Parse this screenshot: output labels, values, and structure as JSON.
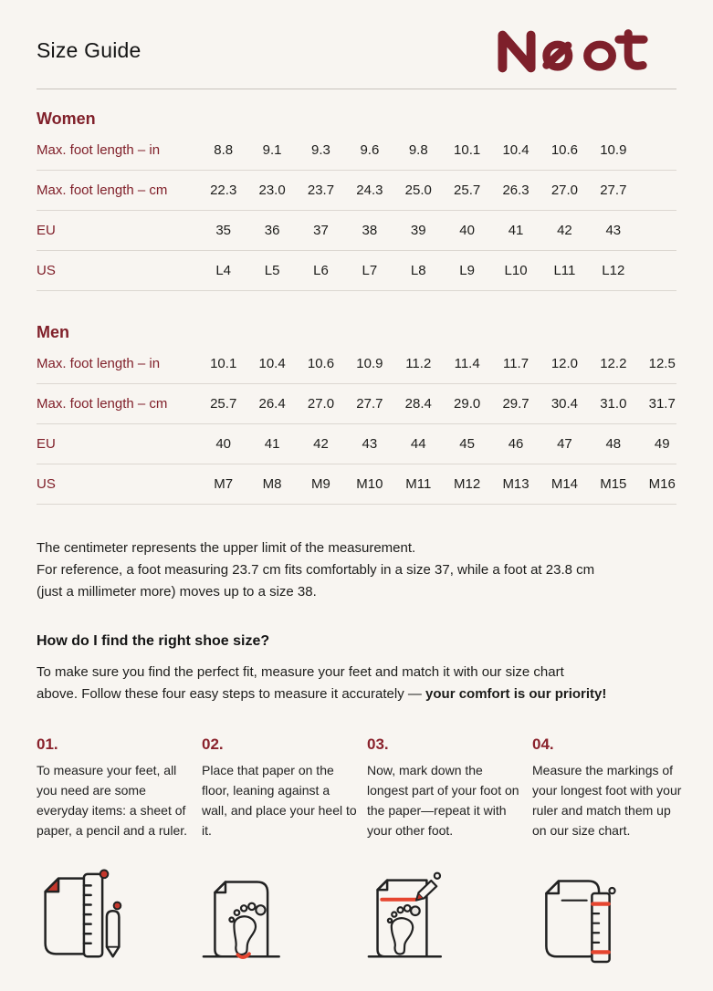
{
  "page": {
    "title": "Size Guide",
    "brand": "Naot"
  },
  "colors": {
    "background": "#F8F5F1",
    "accent_dark_red": "#80202A",
    "logo_red": "#7E202B",
    "icon_red_dark": "#C4372C",
    "icon_red_bright": "#E6452F",
    "text": "#1D1D1B",
    "divider": "#DCD7D1"
  },
  "women": {
    "heading": "Women",
    "rows": [
      {
        "label": "Max. foot length – in",
        "values": [
          "8.8",
          "9.1",
          "9.3",
          "9.6",
          "9.8",
          "10.1",
          "10.4",
          "10.6",
          "10.9"
        ]
      },
      {
        "label": "Max. foot length – cm",
        "values": [
          "22.3",
          "23.0",
          "23.7",
          "24.3",
          "25.0",
          "25.7",
          "26.3",
          "27.0",
          "27.7"
        ]
      },
      {
        "label": "EU",
        "values": [
          "35",
          "36",
          "37",
          "38",
          "39",
          "40",
          "41",
          "42",
          "43"
        ]
      },
      {
        "label": "US",
        "values": [
          "L4",
          "L5",
          "L6",
          "L7",
          "L8",
          "L9",
          "L10",
          "L11",
          "L12"
        ]
      }
    ]
  },
  "men": {
    "heading": "Men",
    "rows": [
      {
        "label": "Max. foot length – in",
        "values": [
          "10.1",
          "10.4",
          "10.6",
          "10.9",
          "11.2",
          "11.4",
          "11.7",
          "12.0",
          "12.2",
          "12.5"
        ]
      },
      {
        "label": "Max. foot length – cm",
        "values": [
          "25.7",
          "26.4",
          "27.0",
          "27.7",
          "28.4",
          "29.0",
          "29.7",
          "30.4",
          "31.0",
          "31.7"
        ]
      },
      {
        "label": "EU",
        "values": [
          "40",
          "41",
          "42",
          "43",
          "44",
          "45",
          "46",
          "47",
          "48",
          "49"
        ]
      },
      {
        "label": "US",
        "values": [
          "M7",
          "M8",
          "M9",
          "M10",
          "M11",
          "M12",
          "M13",
          "M14",
          "M15",
          "M16"
        ]
      }
    ]
  },
  "notes": {
    "lines": [
      "The centimeter represents the upper limit of the measurement.",
      "For reference, a foot measuring 23.7 cm fits comfortably in a size 37, while a foot at 23.8 cm",
      "(just a millimeter more) moves up to a size 38."
    ]
  },
  "how_to": {
    "heading": "How do I find the right shoe size?",
    "intro_line1": "To make sure you find the perfect fit, measure your feet and match it with our size chart",
    "intro_line2": "above. Follow these four easy steps to measure it accurately — ",
    "intro_bold": "your comfort is our priority!"
  },
  "steps": [
    {
      "number": "01.",
      "text": "To measure your feet, all you need are some everyday items: a sheet of paper, a pencil and a ruler.",
      "icon": "paper-ruler-pencil"
    },
    {
      "number": "02.",
      "text": "Place that paper on the floor, leaning against a wall, and place your heel to it.",
      "icon": "paper-footprint-heel"
    },
    {
      "number": "03.",
      "text": "Now, mark down the longest part of your foot on the paper—repeat it with your other foot.",
      "icon": "paper-footprint-pencil-mark"
    },
    {
      "number": "04.",
      "text": "Measure the markings of your longest foot with your ruler and match them up on our size chart.",
      "icon": "paper-ruler-markings"
    }
  ]
}
